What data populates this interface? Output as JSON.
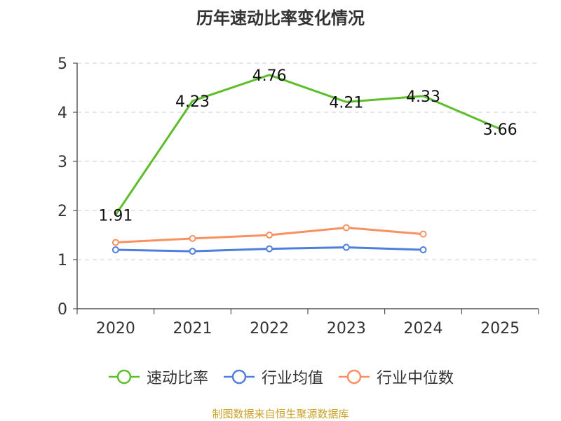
{
  "chart_data": {
    "type": "line",
    "title": "历年速动比率变化情况",
    "categories": [
      "2020",
      "2021",
      "2022",
      "2023",
      "2024",
      "2025"
    ],
    "ylim": [
      0,
      5
    ],
    "yticks": [
      "0",
      "1",
      "2",
      "3",
      "4",
      "5"
    ],
    "grid": true,
    "legend_position": "bottom",
    "series": [
      {
        "name": "速动比率",
        "color": "#5cbe2a",
        "marker": false,
        "show_labels": true,
        "values": [
          1.91,
          4.23,
          4.76,
          4.21,
          4.33,
          3.66
        ],
        "labels": [
          "1.91",
          "4.23",
          "4.76",
          "4.21",
          "4.33",
          "3.66"
        ]
      },
      {
        "name": "行业均值",
        "color": "#4f7fdc",
        "marker": true,
        "show_labels": false,
        "values": [
          1.2,
          1.17,
          1.22,
          1.25,
          1.2,
          null
        ]
      },
      {
        "name": "行业中位数",
        "color": "#f89060",
        "marker": true,
        "show_labels": false,
        "values": [
          1.35,
          1.43,
          1.5,
          1.65,
          1.52,
          null
        ]
      }
    ]
  },
  "footer": {
    "source": "制图数据来自恒生聚源数据库"
  }
}
